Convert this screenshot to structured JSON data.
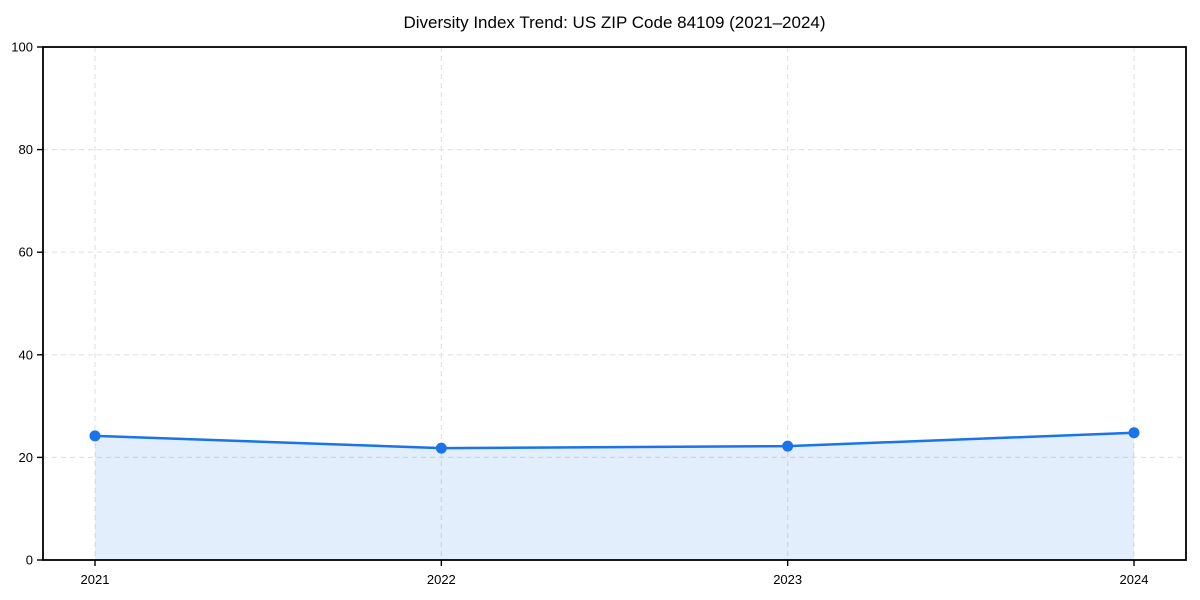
{
  "page": {
    "background": "#ffffff"
  },
  "chart_data": {
    "type": "line",
    "title": "Diversity Index Trend: US ZIP Code 84109 (2021–2024)",
    "categories": [
      "2021",
      "2022",
      "2023",
      "2024"
    ],
    "series": [
      {
        "name": "Diversity Index",
        "values": [
          24.2,
          21.8,
          22.2,
          24.8
        ]
      }
    ],
    "xlabel": "",
    "ylabel": "",
    "ylim": [
      0,
      100
    ],
    "yticks": [
      0,
      20,
      40,
      60,
      80,
      100
    ],
    "grid": true,
    "grid_style": "dashed",
    "legend_position": "none",
    "line_color": "#1a73e8",
    "marker": "circle",
    "marker_radius": 5.5,
    "area_fill": true,
    "fill_opacity": 0.12,
    "grid_color": "#e3e3e3",
    "axis_color": "#000000",
    "text_color": "#000000"
  }
}
